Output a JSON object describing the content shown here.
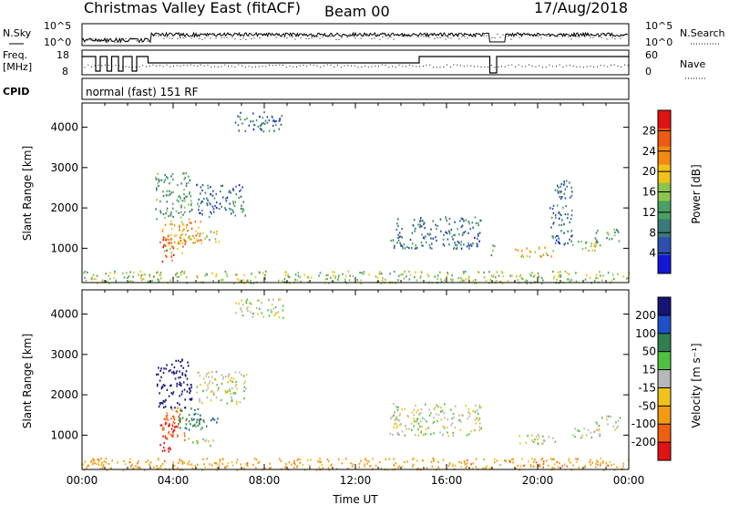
{
  "header": {
    "site": "Christmas Valley East (fitACF)",
    "beam": "Beam 00",
    "date": "17/Aug/2018"
  },
  "noise_panel": {
    "left_label": "N.Sky",
    "left_ticks": [
      "10^5",
      "10^0"
    ],
    "right_label": "N.Search",
    "right_ticks": [
      "10^5",
      "10^0"
    ]
  },
  "freq_panel": {
    "left_label_1": "Freq.",
    "left_label_2": "[MHz]",
    "left_ticks": [
      "18",
      "8"
    ],
    "right_label": "Nave",
    "right_ticks": [
      "60",
      "0"
    ]
  },
  "cpid_panel": {
    "label": "CPID",
    "mode": "normal (fast) 151 RF"
  },
  "colors": {
    "power_scale": [
      "#1515d8",
      "#2e4fb0",
      "#3a7a7a",
      "#4c9f63",
      "#8cc44c",
      "#f2c21a",
      "#f28a10",
      "#ee5a10",
      "#e01414"
    ],
    "velocity_scale": [
      "#151575",
      "#2050c8",
      "#2f7f4f",
      "#50c040",
      "#b8b8b8",
      "#f2c21a",
      "#f29a10",
      "#ee6010",
      "#e01414"
    ]
  },
  "chart_data": [
    {
      "type": "heatmap",
      "quantity": "Power",
      "ylabel": "Slant Range [km]",
      "y_ticks": [
        1000,
        2000,
        3000,
        4000
      ],
      "ylim": [
        150,
        4600
      ],
      "xlim": [
        "00:00",
        "24:00"
      ],
      "colorbar": {
        "label": "Power [dB]",
        "range": [
          0,
          32
        ],
        "ticks": [
          "4",
          "8",
          "12",
          "16",
          "20",
          "24",
          "28"
        ]
      },
      "regions": [
        {
          "t": [
            3.4,
            4.0
          ],
          "r": [
            600,
            1400
          ],
          "v": 28
        },
        {
          "t": [
            3.5,
            4.6
          ],
          "r": [
            900,
            1700
          ],
          "v": 20
        },
        {
          "t": [
            4.2,
            5.2
          ],
          "r": [
            1100,
            1700
          ],
          "v": 24
        },
        {
          "t": [
            3.2,
            4.8
          ],
          "r": [
            1700,
            2900
          ],
          "v": 12
        },
        {
          "t": [
            4.5,
            6.0
          ],
          "r": [
            1150,
            1450
          ],
          "v": 16
        },
        {
          "t": [
            5.0,
            7.2
          ],
          "r": [
            1800,
            2600
          ],
          "v": 8
        },
        {
          "t": [
            6.7,
            8.8
          ],
          "r": [
            3900,
            4400
          ],
          "v": 8
        },
        {
          "t": [
            0.0,
            24.0
          ],
          "r": [
            150,
            450
          ],
          "v": 16
        },
        {
          "t": [
            13.5,
            17.5
          ],
          "r": [
            1000,
            1800
          ],
          "v": 8
        },
        {
          "t": [
            17.8,
            18.1
          ],
          "r": [
            800,
            1100
          ],
          "v": 12
        },
        {
          "t": [
            19.0,
            20.8
          ],
          "r": [
            800,
            1050
          ],
          "v": 20
        },
        {
          "t": [
            20.5,
            21.5
          ],
          "r": [
            1100,
            2700
          ],
          "v": 8
        },
        {
          "t": [
            21.5,
            22.8
          ],
          "r": [
            950,
            1250
          ],
          "v": 16
        },
        {
          "t": [
            22.5,
            23.6
          ],
          "r": [
            1150,
            1500
          ],
          "v": 12
        }
      ]
    },
    {
      "type": "heatmap",
      "quantity": "Velocity",
      "ylabel": "Slant Range [km]",
      "y_ticks": [
        1000,
        2000,
        3000,
        4000
      ],
      "ylim": [
        150,
        4600
      ],
      "xlim": [
        "00:00",
        "24:00"
      ],
      "xlabel": "Time UT",
      "x_ticks": [
        "00:00",
        "04:00",
        "08:00",
        "12:00",
        "16:00",
        "20:00",
        "00:00"
      ],
      "colorbar": {
        "label": "Velocity [m s⁻¹]",
        "ticks": [
          "-200",
          "-100",
          "-50",
          "-15",
          "15",
          "50",
          "100",
          "200"
        ]
      },
      "regions": [
        {
          "t": [
            3.4,
            4.1
          ],
          "r": [
            600,
            1400
          ],
          "v": -200
        },
        {
          "t": [
            3.5,
            4.6
          ],
          "r": [
            900,
            1700
          ],
          "v": -100
        },
        {
          "t": [
            4.2,
            5.2
          ],
          "r": [
            1100,
            1700
          ],
          "v": 50
        },
        {
          "t": [
            3.2,
            4.8
          ],
          "r": [
            1700,
            2900
          ],
          "v": 200
        },
        {
          "t": [
            4.5,
            6.0
          ],
          "r": [
            1150,
            1450
          ],
          "v": 50
        },
        {
          "t": [
            4.6,
            5.8
          ],
          "r": [
            750,
            950
          ],
          "v": 0
        },
        {
          "t": [
            5.0,
            7.2
          ],
          "r": [
            1800,
            2600
          ],
          "v": 0
        },
        {
          "t": [
            6.7,
            8.8
          ],
          "r": [
            3900,
            4400
          ],
          "v": 0
        },
        {
          "t": [
            0.0,
            24.0
          ],
          "r": [
            150,
            450
          ],
          "v": -50
        },
        {
          "t": [
            13.5,
            17.5
          ],
          "r": [
            1000,
            1800
          ],
          "v": 0
        },
        {
          "t": [
            19.0,
            20.8
          ],
          "r": [
            800,
            1050
          ],
          "v": 0
        },
        {
          "t": [
            21.5,
            22.8
          ],
          "r": [
            950,
            1250
          ],
          "v": 0
        },
        {
          "t": [
            22.5,
            23.6
          ],
          "r": [
            1150,
            1500
          ],
          "v": 0
        }
      ]
    }
  ]
}
